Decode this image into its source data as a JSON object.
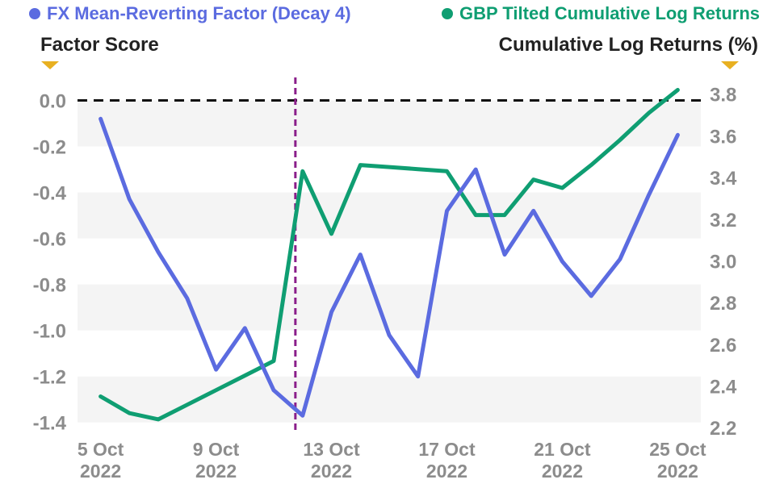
{
  "colors": {
    "factor": "#5b6be0",
    "returns": "#0f9e72",
    "zero_line": "#111111",
    "event_line": "#8a1e8a",
    "band": "#f4f4f4",
    "marker": "#e8b021"
  },
  "chart_data": {
    "type": "line",
    "x_ticks": [
      {
        "day": 5,
        "line1": "5 Oct",
        "line2": "2022"
      },
      {
        "day": 9,
        "line1": "9 Oct",
        "line2": "2022"
      },
      {
        "day": 13,
        "line1": "13 Oct",
        "line2": "2022"
      },
      {
        "day": 17,
        "line1": "17 Oct",
        "line2": "2022"
      },
      {
        "day": 21,
        "line1": "21 Oct",
        "line2": "2022"
      },
      {
        "day": 25,
        "line1": "25 Oct",
        "line2": "2022"
      }
    ],
    "x_unit": "day of October 2022",
    "xlim": [
      4.2,
      25.8
    ],
    "left_axis": {
      "label": "Factor Score",
      "ylim": [
        -1.45,
        0.1
      ],
      "ticks": [
        "0.0",
        "-0.2",
        "-0.4",
        "-0.6",
        "-0.8",
        "-1.0",
        "-1.2",
        "-1.4"
      ],
      "tick_values": [
        0.0,
        -0.2,
        -0.4,
        -0.6,
        -0.8,
        -1.0,
        -1.2,
        -1.4
      ]
    },
    "right_axis": {
      "label": "Cumulative Log Returns (%)",
      "ylim": [
        2.17,
        3.88
      ],
      "ticks": [
        "3.8",
        "3.6",
        "3.4",
        "3.2",
        "3.0",
        "2.8",
        "2.6",
        "2.4",
        "2.2"
      ],
      "tick_values": [
        3.8,
        3.6,
        3.4,
        3.2,
        3.0,
        2.8,
        2.6,
        2.4,
        2.2
      ]
    },
    "series": [
      {
        "name": "FX Mean-Reverting Factor (Decay 4)",
        "axis": "left",
        "x": [
          5,
          6,
          7,
          8,
          9,
          10,
          11,
          12,
          13,
          14,
          15,
          16,
          17,
          18,
          19,
          20,
          21,
          22,
          23,
          24,
          25
        ],
        "values": [
          -0.08,
          -0.43,
          -0.66,
          -0.86,
          -1.17,
          -0.99,
          -1.26,
          -1.37,
          -0.92,
          -0.67,
          -1.02,
          -1.2,
          -0.48,
          -0.3,
          -0.67,
          -0.48,
          -0.7,
          -0.85,
          -0.69,
          -0.41,
          -0.15
        ]
      },
      {
        "name": "GBP Tilted Cumulative Log Returns",
        "axis": "right",
        "x": [
          5,
          6,
          7,
          8,
          9,
          10,
          11,
          12,
          13,
          14,
          15,
          16,
          17,
          18,
          19,
          20,
          21,
          22,
          23,
          24,
          25
        ],
        "values": [
          2.35,
          2.27,
          2.24,
          2.31,
          2.38,
          2.45,
          2.52,
          3.43,
          3.13,
          3.46,
          3.45,
          3.44,
          3.43,
          3.22,
          3.22,
          3.39,
          3.35,
          3.46,
          3.58,
          3.71,
          3.82
        ]
      }
    ],
    "zero_line": {
      "axis": "left",
      "value": 0.0,
      "style": "dashed"
    },
    "event_line": {
      "x": 11.75,
      "style": "dashed"
    },
    "grid": false,
    "banded_background": true,
    "legend_position": "top"
  }
}
